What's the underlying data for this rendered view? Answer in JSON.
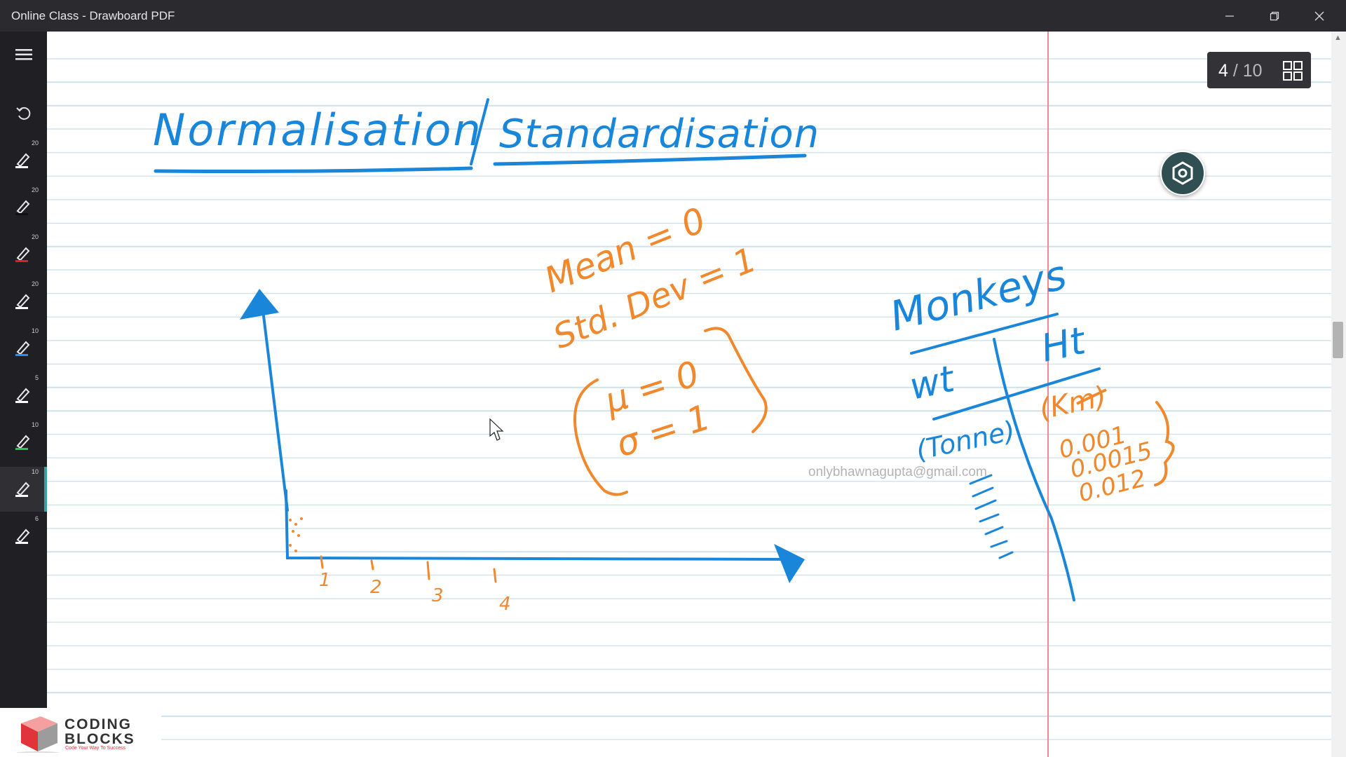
{
  "window": {
    "title": "Online Class - Drawboard PDF"
  },
  "toolbar": {
    "tools": [
      {
        "size": "20",
        "color": "#ffffff"
      },
      {
        "size": "20",
        "color": "#111111"
      },
      {
        "size": "20",
        "color": "#e02020"
      },
      {
        "size": "20",
        "color": "#ffffff"
      },
      {
        "size": "10",
        "color": "#1e90ff"
      },
      {
        "size": "5",
        "color": "#ffffff"
      },
      {
        "size": "10",
        "color": "#22cc44"
      },
      {
        "size": "10",
        "color": "#ffffff"
      },
      {
        "size": "6",
        "color": "#ffffff"
      }
    ],
    "active_tool_index": 7
  },
  "page_indicator": {
    "current": "4",
    "separator": "/",
    "total": "10"
  },
  "notes": {
    "heading_left": "Normalisation",
    "heading_right": "Standardisation",
    "mean_line": "Mean = 0",
    "std_line": "Std. Dev = 1",
    "mu_line": "μ = 0",
    "sigma_line": "σ = 1",
    "monkeys": "Monkeys",
    "col_wt": "wt",
    "col_ht": "Ht",
    "unit_wt": "(Tonne)",
    "unit_ht": "(Km)",
    "ht_values": [
      "0.001",
      "0.0015",
      "0.012"
    ],
    "axis_ticks": [
      "1",
      "2",
      "3",
      "4"
    ]
  },
  "watermark": "onlybhawnagupta@gmail.com",
  "logo": {
    "line1": "CODING",
    "line2": "BLOCKS",
    "tagline": "Code Your Way To Success"
  },
  "colors": {
    "ink_blue": "#1a86d9",
    "ink_orange": "#f0882e",
    "margin_red": "#f08a8a",
    "rule_blue": "#cfe1ea"
  }
}
